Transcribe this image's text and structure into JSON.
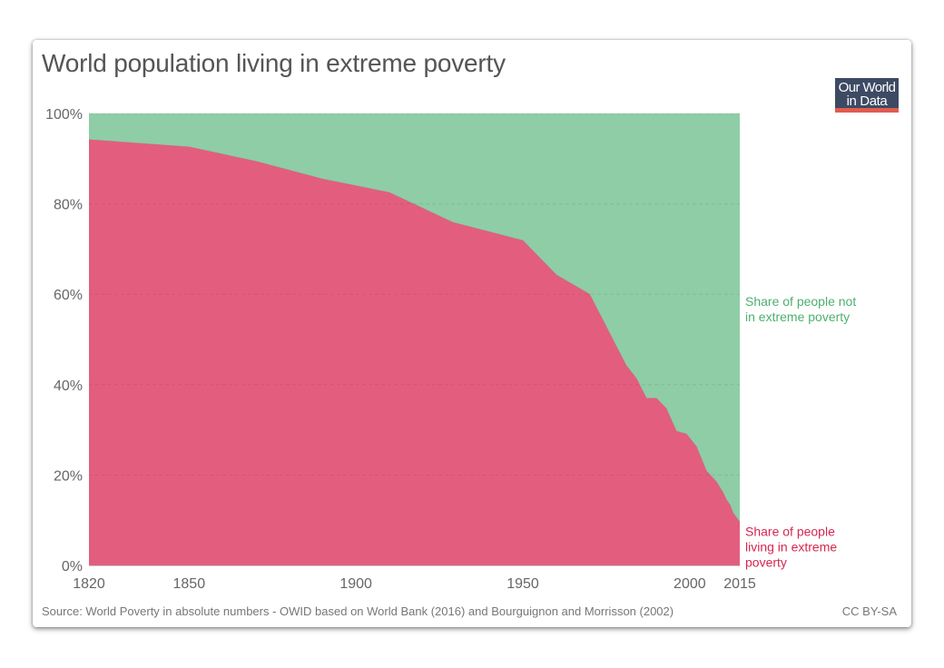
{
  "header": {
    "title": "World population living in extreme poverty",
    "logo_line1": "Our World",
    "logo_line2": "in Data"
  },
  "footer": {
    "source": "Source: World Poverty in absolute numbers - OWID based on World Bank (2016) and Bourguignon and Morrisson (2002)",
    "license": "CC BY-SA"
  },
  "chart_data": {
    "type": "area",
    "stacked": true,
    "title": "World population living in extreme poverty",
    "xlabel": "",
    "ylabel": "",
    "xlim": [
      1820,
      2015
    ],
    "ylim": [
      0,
      100
    ],
    "x_ticks": [
      1820,
      1850,
      1900,
      1950,
      2000,
      2015
    ],
    "x_tick_labels": [
      "1820",
      "1850",
      "1900",
      "1950",
      "2000",
      "2015"
    ],
    "y_ticks": [
      0,
      20,
      40,
      60,
      80,
      100
    ],
    "y_tick_labels": [
      "0%",
      "20%",
      "40%",
      "60%",
      "80%",
      "100%"
    ],
    "grid": true,
    "x": [
      1820,
      1850,
      1870,
      1890,
      1910,
      1929,
      1950,
      1960,
      1970,
      1981,
      1984,
      1987,
      1990,
      1993,
      1996,
      1999,
      2002,
      2005,
      2008,
      2010,
      2011,
      2012,
      2013,
      2015
    ],
    "series": [
      {
        "name": "Share of people living in extreme poverty",
        "label_lines": [
          "Share of people",
          "living in extreme",
          "poverty"
        ],
        "color": "#e35e7e",
        "label_color": "#d6264f",
        "values": [
          94.2,
          92.6,
          89.4,
          85.5,
          82.5,
          75.9,
          71.9,
          64.3,
          60.0,
          44.2,
          41.4,
          37.0,
          37.0,
          34.7,
          29.7,
          29.1,
          26.3,
          20.9,
          18.5,
          16.1,
          14.5,
          13.5,
          11.6,
          9.6
        ]
      },
      {
        "name": "Share of people not in extreme poverty",
        "label_lines": [
          "Share of people not",
          "in extreme poverty"
        ],
        "color": "#8ecda6",
        "label_color": "#4daf6f",
        "values": [
          5.8,
          7.4,
          10.6,
          14.5,
          17.5,
          24.1,
          28.1,
          35.7,
          40.0,
          55.8,
          58.6,
          63.0,
          63.0,
          65.3,
          70.3,
          70.9,
          73.7,
          79.1,
          81.5,
          83.9,
          85.5,
          86.5,
          88.4,
          90.4
        ]
      }
    ]
  }
}
